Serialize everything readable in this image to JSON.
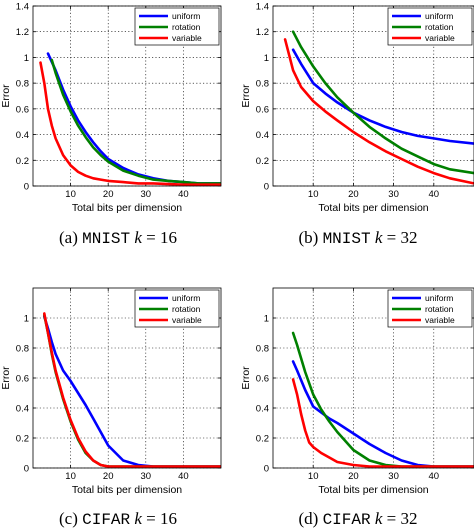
{
  "chart_data": [
    {
      "type": "line",
      "caption": {
        "prefix": "(a) ",
        "dataset": "MNIST",
        "var": "k",
        "rest": " = 16"
      },
      "xlabel": "Total bits per dimension",
      "ylabel": "Error",
      "xlim": [
        0,
        50
      ],
      "ylim": [
        0,
        1.4
      ],
      "xticks": [
        10,
        20,
        30,
        40
      ],
      "yticks": [
        0,
        0.2,
        0.4,
        0.6,
        0.8,
        1,
        1.2,
        1.4
      ],
      "ytick_labels": [
        "0",
        "0.2",
        "0.4",
        "0.6",
        "0.8",
        "1",
        "1.2",
        "1.4"
      ],
      "grid": true,
      "legend_position": "top-right",
      "series": [
        {
          "name": "uniform",
          "color": "#0000ff",
          "x": [
            4,
            6,
            8,
            10,
            12,
            14,
            16,
            18,
            20,
            24,
            28,
            32,
            36,
            40,
            44,
            50
          ],
          "y": [
            1.03,
            0.9,
            0.75,
            0.62,
            0.51,
            0.42,
            0.34,
            0.27,
            0.21,
            0.14,
            0.09,
            0.06,
            0.04,
            0.03,
            0.02,
            0.02
          ]
        },
        {
          "name": "rotation",
          "color": "#008000",
          "x": [
            5,
            6,
            8,
            10,
            12,
            14,
            16,
            18,
            20,
            24,
            28,
            32,
            36,
            40,
            44,
            50
          ],
          "y": [
            0.98,
            0.88,
            0.71,
            0.58,
            0.47,
            0.38,
            0.3,
            0.24,
            0.19,
            0.12,
            0.08,
            0.05,
            0.04,
            0.03,
            0.02,
            0.02
          ]
        },
        {
          "name": "variable",
          "color": "#ff0000",
          "x": [
            2,
            3,
            4,
            5,
            6,
            8,
            10,
            12,
            14,
            16,
            18,
            20,
            24,
            28,
            32,
            40,
            50
          ],
          "y": [
            0.96,
            0.8,
            0.6,
            0.47,
            0.37,
            0.24,
            0.16,
            0.11,
            0.08,
            0.06,
            0.05,
            0.04,
            0.03,
            0.02,
            0.02,
            0.01,
            0.01
          ]
        }
      ]
    },
    {
      "type": "line",
      "caption": {
        "prefix": "(b) ",
        "dataset": "MNIST",
        "var": "k",
        "rest": " = 32"
      },
      "xlabel": "Total bits per dimension",
      "ylabel": "Error",
      "xlim": [
        0,
        50
      ],
      "ylim": [
        0,
        1.4
      ],
      "xticks": [
        10,
        20,
        30,
        40
      ],
      "yticks": [
        0,
        0.2,
        0.4,
        0.6,
        0.8,
        1,
        1.2,
        1.4
      ],
      "ytick_labels": [
        "0",
        "0.2",
        "0.4",
        "0.6",
        "0.8",
        "1",
        "1.2",
        "1.4"
      ],
      "grid": true,
      "legend_position": "top-right",
      "series": [
        {
          "name": "uniform",
          "color": "#0000ff",
          "x": [
            5,
            7,
            10,
            13,
            16,
            20,
            24,
            28,
            32,
            36,
            40,
            44,
            50
          ],
          "y": [
            1.06,
            0.95,
            0.8,
            0.72,
            0.65,
            0.57,
            0.51,
            0.46,
            0.42,
            0.39,
            0.37,
            0.35,
            0.33
          ]
        },
        {
          "name": "rotation",
          "color": "#008000",
          "x": [
            5,
            7,
            10,
            13,
            16,
            20,
            24,
            28,
            32,
            36,
            40,
            44,
            50
          ],
          "y": [
            1.2,
            1.08,
            0.93,
            0.8,
            0.69,
            0.57,
            0.46,
            0.37,
            0.29,
            0.23,
            0.17,
            0.13,
            0.1
          ]
        },
        {
          "name": "variable",
          "color": "#ff0000",
          "x": [
            3,
            5,
            7,
            10,
            13,
            16,
            20,
            24,
            28,
            32,
            36,
            40,
            44,
            50
          ],
          "y": [
            1.14,
            0.9,
            0.77,
            0.66,
            0.58,
            0.51,
            0.42,
            0.34,
            0.27,
            0.21,
            0.15,
            0.1,
            0.06,
            0.02
          ]
        }
      ]
    },
    {
      "type": "line",
      "caption": {
        "prefix": "(c) ",
        "dataset": "CIFAR",
        "var": "k",
        "rest": " = 16"
      },
      "xlabel": "Total bits per dimension",
      "ylabel": "Error",
      "xlim": [
        0,
        50
      ],
      "ylim": [
        0,
        1.2
      ],
      "xticks": [
        10,
        20,
        30,
        40
      ],
      "yticks": [
        0,
        0.2,
        0.4,
        0.6,
        0.8,
        1
      ],
      "ytick_labels": [
        "0",
        "0.2",
        "0.4",
        "0.6",
        "0.8",
        "1"
      ],
      "grid": true,
      "legend_position": "top-right",
      "series": [
        {
          "name": "uniform",
          "color": "#0000ff",
          "x": [
            3,
            4,
            5,
            6,
            8,
            10,
            12,
            14,
            16,
            18,
            20,
            24,
            28,
            32,
            40,
            50
          ],
          "y": [
            1.01,
            0.93,
            0.84,
            0.76,
            0.65,
            0.58,
            0.5,
            0.42,
            0.33,
            0.24,
            0.15,
            0.05,
            0.02,
            0.01,
            0.01,
            0.01
          ]
        },
        {
          "name": "rotation",
          "color": "#008000",
          "x": [
            3,
            4,
            5,
            6,
            8,
            10,
            12,
            14,
            16,
            18,
            20,
            24,
            28,
            32,
            40,
            50
          ],
          "y": [
            1.02,
            0.9,
            0.76,
            0.64,
            0.46,
            0.31,
            0.19,
            0.1,
            0.05,
            0.02,
            0.01,
            0.01,
            0.01,
            0.01,
            0.01,
            0.01
          ]
        },
        {
          "name": "variable",
          "color": "#ff0000",
          "x": [
            3,
            4,
            5,
            6,
            8,
            10,
            12,
            14,
            16,
            18,
            20,
            24,
            28,
            32,
            40,
            50
          ],
          "y": [
            1.03,
            0.9,
            0.77,
            0.65,
            0.47,
            0.32,
            0.2,
            0.11,
            0.05,
            0.02,
            0.01,
            0.01,
            0.01,
            0.01,
            0.01,
            0.01
          ]
        }
      ]
    },
    {
      "type": "line",
      "caption": {
        "prefix": "(d) ",
        "dataset": "CIFAR",
        "var": "k",
        "rest": " = 32"
      },
      "xlabel": "Total bits per dimension",
      "ylabel": "Error",
      "xlim": [
        0,
        50
      ],
      "ylim": [
        0,
        1.2
      ],
      "xticks": [
        10,
        20,
        30,
        40
      ],
      "yticks": [
        0,
        0.2,
        0.4,
        0.6,
        0.8,
        1
      ],
      "ytick_labels": [
        "0",
        "0.2",
        "0.4",
        "0.6",
        "0.8",
        "1"
      ],
      "grid": true,
      "legend_position": "top-right",
      "series": [
        {
          "name": "uniform",
          "color": "#0000ff",
          "x": [
            5,
            6,
            8,
            10,
            12,
            14,
            16,
            20,
            24,
            28,
            32,
            36,
            40,
            44,
            50
          ],
          "y": [
            0.71,
            0.65,
            0.52,
            0.41,
            0.37,
            0.33,
            0.3,
            0.23,
            0.16,
            0.1,
            0.05,
            0.02,
            0.01,
            0.01,
            0.01
          ]
        },
        {
          "name": "rotation",
          "color": "#008000",
          "x": [
            5,
            6,
            8,
            10,
            12,
            14,
            16,
            20,
            24,
            28,
            32,
            36,
            40,
            44,
            50
          ],
          "y": [
            0.9,
            0.82,
            0.64,
            0.49,
            0.39,
            0.31,
            0.24,
            0.12,
            0.05,
            0.02,
            0.01,
            0.01,
            0.01,
            0.01,
            0.01
          ]
        },
        {
          "name": "variable",
          "color": "#ff0000",
          "x": [
            5,
            6,
            7,
            8,
            9,
            10,
            12,
            14,
            16,
            20,
            24,
            28,
            32,
            40,
            50
          ],
          "y": [
            0.59,
            0.49,
            0.36,
            0.25,
            0.17,
            0.14,
            0.1,
            0.07,
            0.04,
            0.02,
            0.01,
            0.01,
            0.01,
            0.01,
            0.01
          ]
        }
      ]
    }
  ]
}
